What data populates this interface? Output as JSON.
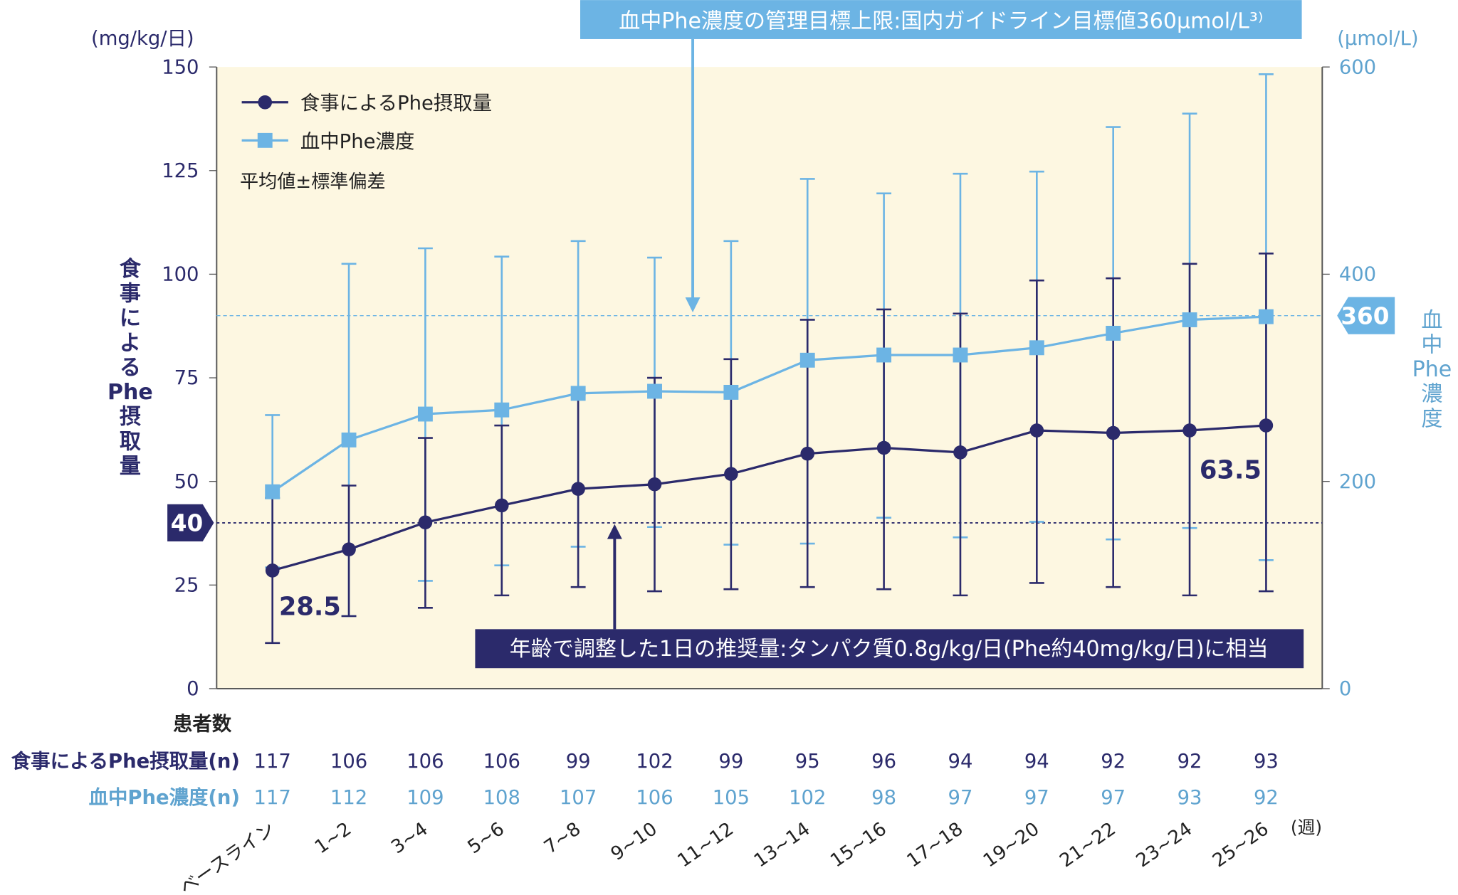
{
  "chart_data": {
    "type": "line",
    "left_axis": {
      "unit": "(mg/kg/日)",
      "label_chars": [
        "食",
        "事",
        "に",
        "よ",
        "る",
        "Phe",
        "摂",
        "取",
        "量"
      ],
      "ylim": [
        0,
        150
      ],
      "ticks": [
        0,
        25,
        50,
        75,
        100,
        125,
        150
      ]
    },
    "right_axis": {
      "unit": "(µmol/L)",
      "label_chars": [
        "血",
        "中",
        "Phe",
        "濃",
        "度"
      ],
      "ylim": [
        0,
        600
      ],
      "ticks": [
        0,
        200,
        400,
        600
      ]
    },
    "categories": [
      "ベースライン",
      "1~2",
      "3~4",
      "5~6",
      "7~8",
      "9~10",
      "11~12",
      "13~14",
      "15~16",
      "17~18",
      "19~20",
      "21~22",
      "23~24",
      "25~26"
    ],
    "x_unit": "(週)",
    "series": [
      {
        "name": "食事によるPhe摂取量",
        "axis": "left",
        "color": "#2b2a6b",
        "marker": "circle",
        "values": [
          28.5,
          33.6,
          40.1,
          44.2,
          48.2,
          49.3,
          51.8,
          56.7,
          58.1,
          57.0,
          62.3,
          61.7,
          62.3,
          63.5
        ],
        "upper": [
          46,
          49,
          60.5,
          63.5,
          71,
          75,
          79.5,
          89,
          91.5,
          90.5,
          98.5,
          99,
          102.5,
          105
        ],
        "lower": [
          11,
          17.5,
          19.5,
          22.5,
          24.5,
          23.5,
          24,
          24.5,
          24,
          22.5,
          25.5,
          24.5,
          22.5,
          23.5
        ]
      },
      {
        "name": "血中Phe濃度",
        "axis": "right",
        "color": "#6cb4e4",
        "marker": "square",
        "values": [
          190,
          240,
          265,
          269,
          285,
          287,
          286,
          317,
          322,
          322,
          329,
          343,
          356,
          359
        ],
        "upper": [
          264,
          410,
          425,
          417,
          432,
          416,
          432,
          492,
          478,
          497,
          499,
          542,
          555,
          593
        ],
        "lower": [
          117,
          70,
          104,
          119,
          137,
          156,
          139,
          140,
          165,
          146,
          161,
          144,
          155,
          124
        ]
      }
    ],
    "legend_note": "平均値±標準偏差",
    "data_labels": {
      "first": "28.5",
      "last": "63.5"
    },
    "reference_lines": [
      {
        "axis": "left",
        "value": 40,
        "label": "40",
        "annotation": "年齢で調整した1日の推奨量:タンパク質0.8g/kg/日(Phe約40mg/kg/日)に相当"
      },
      {
        "axis": "right",
        "value": 360,
        "label": "360",
        "annotation": "血中Phe濃度の管理目標上限:国内ガイドライン目標値360µmol/L³⁾"
      }
    ],
    "patient_counts": {
      "title": "患者数",
      "rows": [
        {
          "label": "食事によるPhe摂取量(n)",
          "values": [
            "117",
            "106",
            "106",
            "106",
            "99",
            "102",
            "99",
            "95",
            "96",
            "94",
            "94",
            "92",
            "92",
            "93"
          ]
        },
        {
          "label": "血中Phe濃度(n)",
          "values": [
            "117",
            "112",
            "109",
            "108",
            "107",
            "106",
            "105",
            "102",
            "98",
            "97",
            "97",
            "97",
            "93",
            "92"
          ]
        }
      ]
    },
    "legend_placement": "top-left",
    "grid": false,
    "colors": {
      "plot_bg": "#fdf7e1",
      "navy": "#2b2a6b",
      "light_blue": "#6cb4e4",
      "right_axis_text": "#5fa3cf"
    }
  }
}
